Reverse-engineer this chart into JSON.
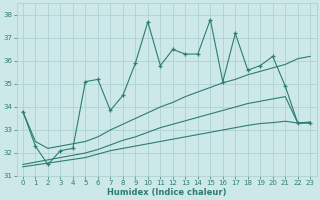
{
  "xlabel": "Humidex (Indice chaleur)",
  "x": [
    0,
    1,
    2,
    3,
    4,
    5,
    6,
    7,
    8,
    9,
    10,
    11,
    12,
    13,
    14,
    15,
    16,
    17,
    18,
    19,
    20,
    21,
    22,
    23
  ],
  "line_jagged": [
    33.8,
    32.3,
    31.5,
    32.1,
    32.2,
    35.1,
    35.2,
    33.85,
    34.5,
    35.9,
    37.7,
    35.8,
    36.5,
    36.3,
    36.3,
    37.8,
    35.1,
    37.2,
    35.6,
    35.8,
    36.2,
    34.9,
    33.3,
    33.3
  ],
  "line_upper": [
    33.8,
    32.5,
    32.2,
    32.3,
    32.4,
    32.5,
    32.7,
    33.0,
    33.25,
    33.5,
    33.75,
    34.0,
    34.2,
    34.45,
    34.65,
    34.85,
    35.05,
    35.2,
    35.4,
    35.55,
    35.7,
    35.85,
    36.1,
    36.2
  ],
  "line_mid": [
    31.5,
    31.6,
    31.7,
    31.8,
    31.9,
    32.0,
    32.15,
    32.35,
    32.55,
    32.7,
    32.9,
    33.1,
    33.25,
    33.4,
    33.55,
    33.7,
    33.85,
    34.0,
    34.15,
    34.25,
    34.35,
    34.45,
    33.3,
    33.35
  ],
  "line_lower": [
    31.4,
    31.48,
    31.56,
    31.64,
    31.72,
    31.8,
    31.95,
    32.1,
    32.2,
    32.3,
    32.4,
    32.5,
    32.6,
    32.7,
    32.8,
    32.9,
    33.0,
    33.1,
    33.2,
    33.28,
    33.32,
    33.38,
    33.3,
    33.32
  ],
  "bg_color": "#cce8e8",
  "grid_color": "#aacece",
  "line_color": "#2e7d6e",
  "ylim": [
    31,
    38.5
  ],
  "yticks": [
    31,
    32,
    33,
    34,
    35,
    36,
    37,
    38
  ],
  "xlim": [
    -0.5,
    23.5
  ],
  "xticks": [
    0,
    1,
    2,
    3,
    4,
    5,
    6,
    7,
    8,
    9,
    10,
    11,
    12,
    13,
    14,
    15,
    16,
    17,
    18,
    19,
    20,
    21,
    22,
    23
  ]
}
